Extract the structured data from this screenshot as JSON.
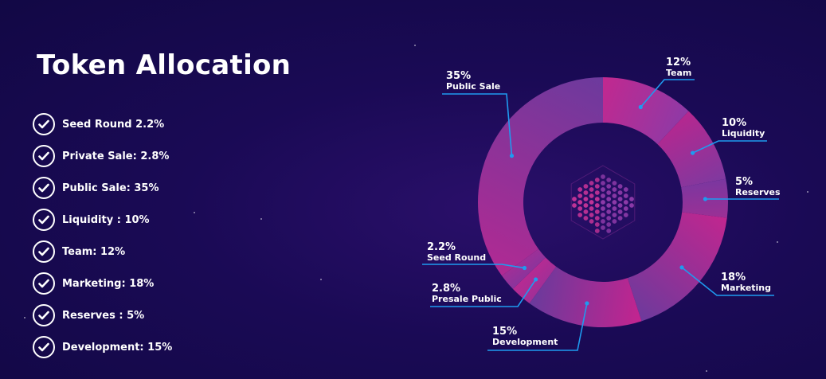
{
  "title": "Token Allocation",
  "allocation_list": [
    "Seed Round 2.2%",
    "Private Sale: 2.8%",
    "Public Sale: 35%",
    "Liquidity : 10%",
    "Team: 12%",
    "Marketing: 18%",
    "Reserves : 5%",
    "Development: 15%"
  ],
  "icons": {
    "list_marker": "check-circle-icon",
    "chart_center": "token-cube-logo"
  },
  "colors": {
    "background": "#1a0a55",
    "leader_line": "#1e9bf0",
    "accent_pink": "#c2248f",
    "accent_purple": "#7b3aa0"
  },
  "chart_data": {
    "type": "pie",
    "donut": true,
    "start_angle_deg": 0,
    "series": [
      {
        "name": "Team",
        "percent_label": "12%",
        "value": 12,
        "color_from": "#c2288f",
        "color_to": "#8e3aa6"
      },
      {
        "name": "Liquidity",
        "percent_label": "10%",
        "value": 10,
        "color_from": "#b6278f",
        "color_to": "#7f399f"
      },
      {
        "name": "Reserves",
        "percent_label": "5%",
        "value": 5,
        "color_from": "#7a37a0",
        "color_to": "#9b3095"
      },
      {
        "name": "Marketing",
        "percent_label": "18%",
        "value": 18,
        "color_from": "#c1268f",
        "color_to": "#6d3a9c"
      },
      {
        "name": "Development",
        "percent_label": "15%",
        "value": 15,
        "color_from": "#c4248f",
        "color_to": "#6a3a9c"
      },
      {
        "name": "Presale Public",
        "percent_label": "2.8%",
        "value": 2.8,
        "color_from": "#a02f97",
        "color_to": "#b82a92"
      },
      {
        "name": "Seed Round",
        "percent_label": "2.2%",
        "value": 2.2,
        "color_from": "#8a349c",
        "color_to": "#a02f97"
      },
      {
        "name": "Public Sale",
        "percent_label": "35%",
        "value": 35,
        "color_from": "#b02a93",
        "color_to": "#6c3a9d"
      }
    ]
  }
}
